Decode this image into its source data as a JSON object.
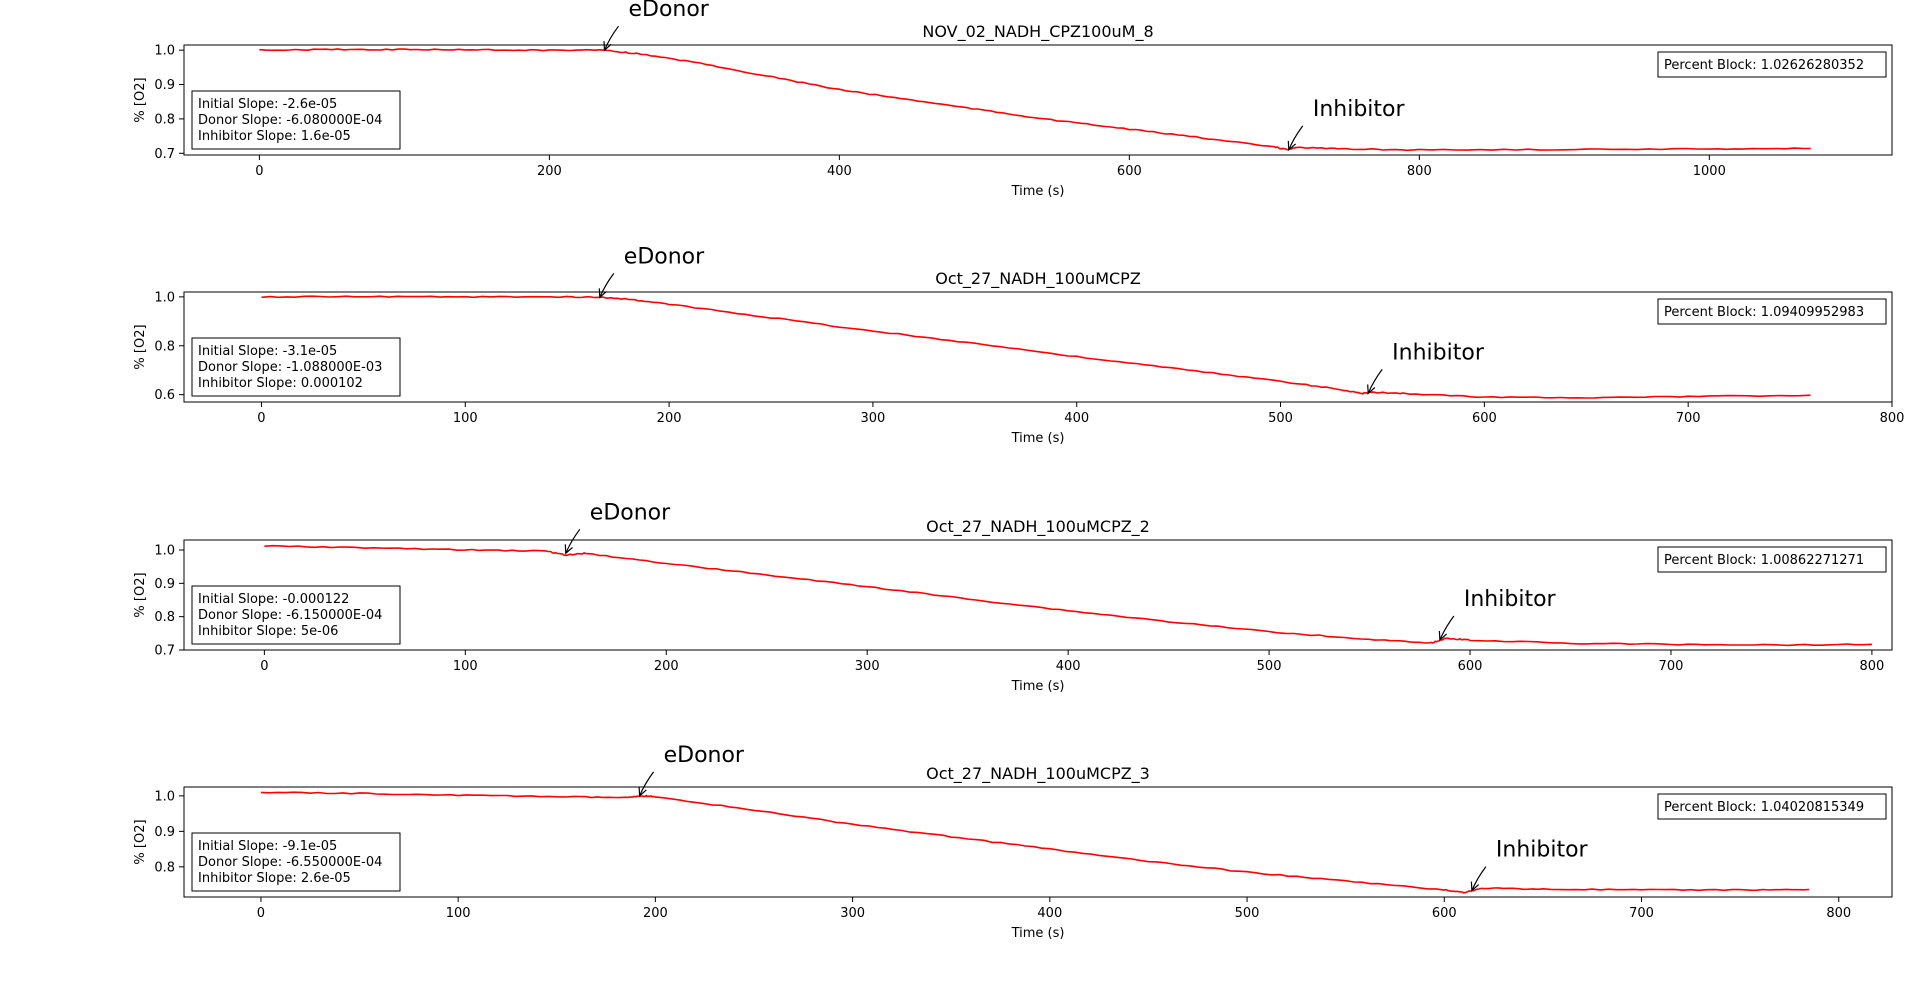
{
  "chart_data": [
    {
      "type": "line",
      "title": "NOV_02_NADH_CPZ100uM_8",
      "xlabel": "Time (s)",
      "ylabel": "% [O2]",
      "xlim": [
        -52,
        1126
      ],
      "ylim": [
        0.695,
        1.015
      ],
      "xticks": [
        0,
        200,
        400,
        600,
        800,
        1000
      ],
      "xtick_labels": [
        "0",
        "200",
        "400",
        "600",
        "800",
        "1000"
      ],
      "yticks": [
        0.7,
        0.8,
        0.9,
        1.0
      ],
      "ytick_labels": [
        "0.7",
        "0.8",
        "0.9",
        "1.0"
      ],
      "color": "#ff0000",
      "series": [
        {
          "x": [
            0,
            50,
            100,
            150,
            200,
            238,
            260,
            300,
            350,
            400,
            450,
            500,
            550,
            600,
            650,
            700,
            710,
            715,
            750,
            800,
            900,
            1000,
            1070
          ],
          "y": [
            1.0,
            1.002,
            1.002,
            1.001,
            1.0,
            1.0,
            0.99,
            0.965,
            0.925,
            0.885,
            0.855,
            0.825,
            0.795,
            0.77,
            0.745,
            0.718,
            0.71,
            0.718,
            0.712,
            0.71,
            0.711,
            0.713,
            0.714
          ]
        }
      ],
      "annotations": [
        {
          "text": "eDonor",
          "x": 238,
          "y": 1.0
        },
        {
          "text": "Inhibitor",
          "x": 710,
          "y": 0.71
        }
      ],
      "stats": [
        "Initial Slope: -2.6e-05",
        "Donor Slope: -6.080000E-04",
        "Inhibitor Slope: 1.6e-05"
      ],
      "percent_block": "Percent Block: 1.02626280352"
    },
    {
      "type": "line",
      "title": "Oct_27_NADH_100uMCPZ",
      "xlabel": "Time (s)",
      "ylabel": "% [O2]",
      "xlim": [
        -38,
        800
      ],
      "ylim": [
        0.57,
        1.02
      ],
      "xticks": [
        0,
        100,
        200,
        300,
        400,
        500,
        600,
        700,
        800
      ],
      "xtick_labels": [
        "0",
        "100",
        "200",
        "300",
        "400",
        "500",
        "600",
        "700",
        "800"
      ],
      "yticks": [
        0.6,
        0.8,
        1.0
      ],
      "ytick_labels": [
        "0.6",
        "0.8",
        "1.0"
      ],
      "color": "#ff0000",
      "series": [
        {
          "x": [
            0,
            50,
            100,
            150,
            166,
            180,
            200,
            250,
            300,
            350,
            400,
            450,
            500,
            530,
            540,
            545,
            560,
            600,
            650,
            700,
            760
          ],
          "y": [
            1.0,
            1.002,
            1.0,
            1.0,
            0.998,
            0.99,
            0.97,
            0.915,
            0.86,
            0.81,
            0.755,
            0.705,
            0.655,
            0.62,
            0.605,
            0.61,
            0.605,
            0.59,
            0.588,
            0.592,
            0.598
          ]
        }
      ],
      "annotations": [
        {
          "text": "eDonor",
          "x": 166,
          "y": 0.998
        },
        {
          "text": "Inhibitor",
          "x": 543,
          "y": 0.605
        }
      ],
      "stats": [
        "Initial Slope: -3.1e-05",
        "Donor Slope: -1.088000E-03",
        "Inhibitor Slope: 0.000102"
      ],
      "percent_block": "Percent Block: 1.09409952983"
    },
    {
      "type": "line",
      "title": "Oct_27_NADH_100uMCPZ_2",
      "xlabel": "Time (s)",
      "ylabel": "% [O2]",
      "xlim": [
        -40,
        810
      ],
      "ylim": [
        0.7,
        1.03
      ],
      "xticks": [
        0,
        100,
        200,
        300,
        400,
        500,
        600,
        700,
        800
      ],
      "xtick_labels": [
        "0",
        "100",
        "200",
        "300",
        "400",
        "500",
        "600",
        "700",
        "800"
      ],
      "yticks": [
        0.7,
        0.8,
        0.9,
        1.0
      ],
      "ytick_labels": [
        "0.7",
        "0.8",
        "0.9",
        "1.0"
      ],
      "color": "#ff0000",
      "series": [
        {
          "x": [
            0,
            50,
            100,
            140,
            150,
            160,
            200,
            250,
            300,
            350,
            400,
            450,
            500,
            550,
            580,
            588,
            600,
            650,
            700,
            750,
            800
          ],
          "y": [
            1.012,
            1.007,
            1.0,
            0.997,
            0.985,
            0.99,
            0.96,
            0.925,
            0.89,
            0.853,
            0.818,
            0.785,
            0.755,
            0.732,
            0.72,
            0.735,
            0.73,
            0.72,
            0.717,
            0.715,
            0.717
          ]
        }
      ],
      "annotations": [
        {
          "text": "eDonor",
          "x": 150,
          "y": 0.99
        },
        {
          "text": "Inhibitor",
          "x": 585,
          "y": 0.73
        }
      ],
      "stats": [
        "Initial Slope: -0.000122",
        "Donor Slope: -6.150000E-04",
        "Inhibitor Slope: 5e-06"
      ],
      "percent_block": "Percent Block: 1.00862271271"
    },
    {
      "type": "line",
      "title": "Oct_27_NADH_100uMCPZ_3",
      "xlabel": "Time (s)",
      "ylabel": "% [O2]",
      "xlim": [
        -39,
        827
      ],
      "ylim": [
        0.715,
        1.025
      ],
      "xticks": [
        0,
        100,
        200,
        300,
        400,
        500,
        600,
        700,
        800
      ],
      "xtick_labels": [
        "0",
        "100",
        "200",
        "300",
        "400",
        "500",
        "600",
        "700",
        "800"
      ],
      "yticks": [
        0.8,
        0.9,
        1.0
      ],
      "ytick_labels": [
        "0.8",
        "0.9",
        "1.0"
      ],
      "color": "#ff0000",
      "series": [
        {
          "x": [
            0,
            50,
            100,
            150,
            185,
            195,
            200,
            250,
            300,
            350,
            400,
            450,
            500,
            550,
            600,
            610,
            620,
            650,
            700,
            750,
            785
          ],
          "y": [
            1.01,
            1.007,
            1.002,
            0.998,
            0.995,
            1.0,
            0.997,
            0.96,
            0.92,
            0.885,
            0.85,
            0.815,
            0.785,
            0.76,
            0.735,
            0.728,
            0.74,
            0.737,
            0.735,
            0.735,
            0.736
          ]
        }
      ],
      "annotations": [
        {
          "text": "eDonor",
          "x": 192,
          "y": 1.0
        },
        {
          "text": "Inhibitor",
          "x": 614,
          "y": 0.733
        }
      ],
      "stats": [
        "Initial Slope: -9.1e-05",
        "Donor Slope: -6.550000E-04",
        "Inhibitor Slope: 2.6e-05"
      ],
      "percent_block": "Percent Block: 1.04020815349"
    }
  ]
}
